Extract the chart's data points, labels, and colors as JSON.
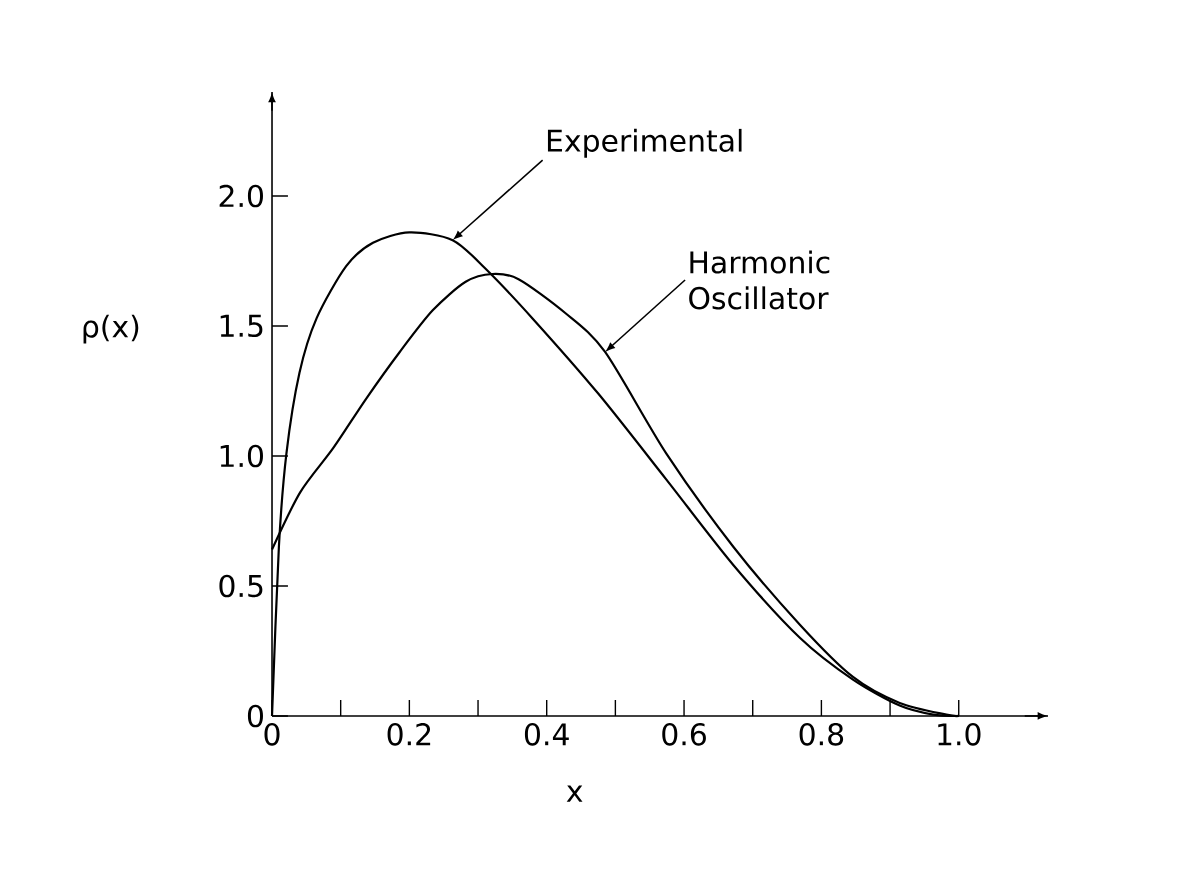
{
  "chart_data": {
    "type": "line",
    "xlabel": "x",
    "ylabel": "ρ(x)",
    "xlim": [
      0,
      1.13
    ],
    "ylim": [
      0,
      2.4
    ],
    "xticks": [
      0,
      {
        "value": 0.1,
        "label": null
      },
      0.2,
      {
        "value": 0.3,
        "label": null
      },
      0.4,
      {
        "value": 0.5,
        "label": null
      },
      0.6,
      {
        "value": 0.7,
        "label": null
      },
      0.8,
      {
        "value": 0.9,
        "label": null
      },
      {
        "value": 1.0,
        "label": "1.0"
      }
    ],
    "yticks": [
      0,
      0.5,
      {
        "value": 1.0,
        "label": "1.0"
      },
      1.5,
      {
        "value": 2.0,
        "label": "2.0"
      }
    ],
    "grid": false,
    "marker": "none",
    "line_style": "solid",
    "series": [
      {
        "color": "#000000",
        "x": [
          0,
          0.01,
          0.021,
          0.04,
          0.065,
          0.108,
          0.147,
          0.2,
          0.263,
          0.311,
          0.379,
          0.475,
          0.574,
          0.672,
          0.769,
          0.846,
          0.914,
          0.963,
          1.0
        ],
        "values": [
          0,
          0.65,
          1.01,
          1.32,
          1.53,
          1.73,
          1.82,
          1.86,
          1.83,
          1.72,
          1.53,
          1.24,
          0.91,
          0.58,
          0.3,
          0.14,
          0.04,
          0.005,
          0
        ]
      },
      {
        "color": "#000000",
        "x": [
          0,
          0.041,
          0.089,
          0.137,
          0.186,
          0.234,
          0.282,
          0.321,
          0.359,
          0.427,
          0.485,
          0.574,
          0.672,
          0.769,
          0.846,
          0.914,
          0.982,
          1.0
        ],
        "values": [
          0.64,
          0.86,
          1.03,
          1.22,
          1.4,
          1.56,
          1.67,
          1.7,
          1.68,
          1.55,
          1.4,
          1.01,
          0.65,
          0.35,
          0.15,
          0.05,
          0.005,
          0
        ]
      }
    ],
    "annotations": [
      {
        "text": "Experimental",
        "x": 0.263,
        "y": 1.83
      },
      {
        "text": "Harmonic Oscillator",
        "x": 0.485,
        "y": 1.4
      }
    ]
  }
}
